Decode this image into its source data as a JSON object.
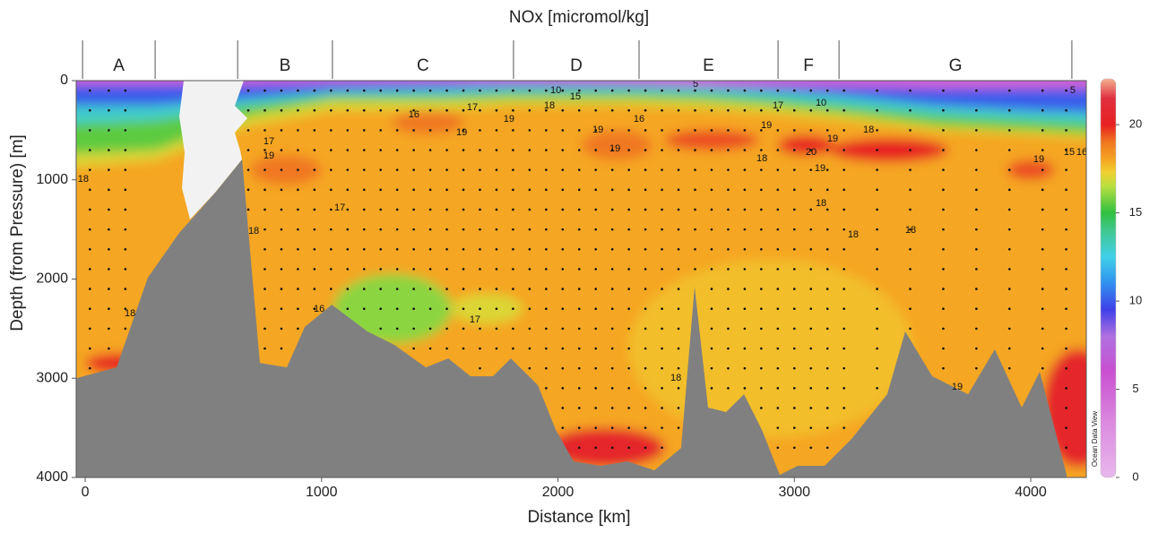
{
  "chart_data": {
    "type": "section",
    "title": "NOx [micromol/kg]",
    "xlabel": "Distance [km]",
    "ylabel": "Depth (from Pressure) [m]",
    "credit": "Ocean Data View",
    "xlim": [
      -38,
      4235
    ],
    "xticks": [
      0,
      1000,
      2000,
      3000,
      4000
    ],
    "ylim": [
      0,
      4000
    ],
    "yticks": [
      0,
      1000,
      2000,
      3000,
      4000
    ],
    "y_inverted": true,
    "sections": [
      {
        "label": "A",
        "from": -11,
        "to": 296
      },
      {
        "label": "B",
        "from": 645,
        "to": 1046
      },
      {
        "label": "C",
        "from": 1046,
        "to": 1812
      },
      {
        "label": "D",
        "from": 1812,
        "to": 2343
      },
      {
        "label": "E",
        "from": 2343,
        "to": 2931
      },
      {
        "label": "F",
        "from": 2931,
        "to": 3189
      },
      {
        "label": "G",
        "from": 3189,
        "to": 4174
      }
    ],
    "colorbar": {
      "clim": [
        0,
        22.6
      ],
      "ticks": [
        0,
        5,
        10,
        15,
        20
      ],
      "colorscale": [
        [
          0,
          "#e8b8ec"
        ],
        [
          3,
          "#dc8ce0"
        ],
        [
          6,
          "#c850d0"
        ],
        [
          8,
          "#b070e0"
        ],
        [
          9.5,
          "#4040e8"
        ],
        [
          11,
          "#3090f0"
        ],
        [
          12.5,
          "#40d0e8"
        ],
        [
          14,
          "#40c890"
        ],
        [
          15,
          "#30c040"
        ],
        [
          16.5,
          "#b8e040"
        ],
        [
          17.3,
          "#f0d030"
        ],
        [
          18,
          "#f5a623"
        ],
        [
          19,
          "#f07820"
        ],
        [
          20,
          "#e82020"
        ],
        [
          21.5,
          "#e03040"
        ],
        [
          22.6,
          "#f4b090"
        ]
      ]
    },
    "base_value": 18,
    "layers": {
      "x": [
        -38,
        300,
        700,
        1050,
        1500,
        1800,
        2300,
        2600,
        2900,
        3200,
        3600,
        4000,
        4235
      ],
      "bands": [
        {
          "value": 17,
          "bottom": [
            900,
            800,
            450,
            300,
            300,
            250,
            250,
            280,
            330,
            400,
            500,
            550,
            600
          ]
        },
        {
          "value": 15.5,
          "bottom": [
            750,
            700,
            350,
            200,
            200,
            180,
            180,
            200,
            250,
            330,
            450,
            500,
            550
          ]
        },
        {
          "value": 13,
          "bottom": [
            450,
            400,
            250,
            150,
            150,
            120,
            120,
            140,
            180,
            250,
            350,
            400,
            450
          ]
        },
        {
          "value": 10,
          "bottom": [
            250,
            250,
            180,
            100,
            80,
            60,
            60,
            70,
            100,
            150,
            250,
            300,
            330
          ]
        },
        {
          "value": 5,
          "bottom": [
            40,
            40,
            40,
            20,
            15,
            20,
            30,
            50,
            50,
            60,
            80,
            80,
            80
          ]
        }
      ]
    },
    "patches": [
      {
        "value": 17.6,
        "x": 2900,
        "depth": 2700,
        "rx": 600,
        "ry": 900
      },
      {
        "value": 16,
        "x": 1300,
        "depth": 2300,
        "rx": 250,
        "ry": 350
      },
      {
        "value": 17,
        "x": 1700,
        "depth": 2300,
        "rx": 150,
        "ry": 150
      },
      {
        "value": 19,
        "x": 850,
        "depth": 900,
        "rx": 150,
        "ry": 150
      },
      {
        "value": 20,
        "x": 3400,
        "depth": 700,
        "rx": 250,
        "ry": 120
      },
      {
        "value": 20,
        "x": 3050,
        "depth": 650,
        "rx": 120,
        "ry": 100
      },
      {
        "value": 19.5,
        "x": 2650,
        "depth": 600,
        "rx": 200,
        "ry": 100
      },
      {
        "value": 19,
        "x": 2250,
        "depth": 650,
        "rx": 150,
        "ry": 150
      },
      {
        "value": 19,
        "x": 1450,
        "depth": 420,
        "rx": 150,
        "ry": 120
      },
      {
        "value": 19.5,
        "x": 4000,
        "depth": 900,
        "rx": 100,
        "ry": 100
      },
      {
        "value": 20.5,
        "x": 2200,
        "depth": 3700,
        "rx": 250,
        "ry": 200
      },
      {
        "value": 20.5,
        "x": 4200,
        "depth": 3300,
        "rx": 150,
        "ry": 600
      },
      {
        "value": 20,
        "x": 150,
        "depth": 2850,
        "rx": 150,
        "ry": 100
      }
    ],
    "contour_labels": [
      {
        "label": 16,
        "x": 1391,
        "depth": 343
      },
      {
        "label": 17,
        "x": 1638,
        "depth": 271
      },
      {
        "label": 19,
        "x": 1793,
        "depth": 388
      },
      {
        "label": 18,
        "x": 1964,
        "depth": 253
      },
      {
        "label": 10,
        "x": 1991,
        "depth": 99
      },
      {
        "label": 15,
        "x": 2074,
        "depth": 163
      },
      {
        "label": 5,
        "x": 2582,
        "depth": 36
      },
      {
        "label": 16,
        "x": 2343,
        "depth": 388
      },
      {
        "label": 19,
        "x": 1593,
        "depth": 524
      },
      {
        "label": 19,
        "x": 2169,
        "depth": 497
      },
      {
        "label": 19,
        "x": 2241,
        "depth": 686
      },
      {
        "label": 19,
        "x": 2882,
        "depth": 451
      },
      {
        "label": 17,
        "x": 2931,
        "depth": 253
      },
      {
        "label": 10,
        "x": 3113,
        "depth": 226
      },
      {
        "label": 18,
        "x": 3314,
        "depth": 497
      },
      {
        "label": 19,
        "x": 3162,
        "depth": 587
      },
      {
        "label": 20,
        "x": 3071,
        "depth": 722
      },
      {
        "label": 19,
        "x": 3109,
        "depth": 885
      },
      {
        "label": 18,
        "x": 2863,
        "depth": 786
      },
      {
        "label": 5,
        "x": 4178,
        "depth": 99
      },
      {
        "label": 15,
        "x": 4163,
        "depth": 722
      },
      {
        "label": 16,
        "x": 4216,
        "depth": 722
      },
      {
        "label": 19,
        "x": 4034,
        "depth": 795
      },
      {
        "label": 17,
        "x": 777,
        "depth": 614
      },
      {
        "label": 19,
        "x": 777,
        "depth": 758
      },
      {
        "label": 18,
        "x": -8,
        "depth": 993
      },
      {
        "label": 17,
        "x": 1077,
        "depth": 1282
      },
      {
        "label": 18,
        "x": 713,
        "depth": 1517
      },
      {
        "label": 18,
        "x": 3113,
        "depth": 1237
      },
      {
        "label": 18,
        "x": 3249,
        "depth": 1553
      },
      {
        "label": 18,
        "x": 3492,
        "depth": 1508
      },
      {
        "label": 16,
        "x": 990,
        "depth": 2303
      },
      {
        "label": 17,
        "x": 1649,
        "depth": 2411
      },
      {
        "label": 18,
        "x": 190,
        "depth": 2348
      },
      {
        "label": 18,
        "x": 2499,
        "depth": 2998
      },
      {
        "label": 19,
        "x": 3689,
        "depth": 3088
      }
    ],
    "stations": [
      20,
      100,
      170,
      690,
      760,
      830,
      900,
      970,
      1040,
      1110,
      1180,
      1250,
      1320,
      1390,
      1460,
      1530,
      1600,
      1670,
      1740,
      1810,
      1880,
      1950,
      2020,
      2090,
      2160,
      2230,
      2300,
      2370,
      2440,
      2510,
      2580,
      2650,
      2720,
      2790,
      2860,
      2930,
      3000,
      3070,
      3140,
      3210,
      3350,
      3490,
      3630,
      3770,
      3910,
      4050,
      4150
    ],
    "sample_depths": [
      100,
      300,
      500,
      700,
      900,
      1100,
      1300,
      1500,
      1700,
      1900,
      2100,
      2300,
      2500,
      2700,
      2900,
      3100,
      3300,
      3500,
      3700,
      3900
    ],
    "bathymetry": {
      "color": "#808080",
      "x": [
        -38,
        133,
        265,
        398,
        550,
        664,
        739,
        853,
        929,
        1043,
        1194,
        1308,
        1441,
        1536,
        1630,
        1725,
        1801,
        1915,
        1991,
        2066,
        2180,
        2294,
        2408,
        2521,
        2578,
        2635,
        2711,
        2787,
        2863,
        2938,
        3014,
        3128,
        3242,
        3393,
        3469,
        3583,
        3735,
        3848,
        3962,
        4038,
        4152
      ],
      "depth": [
        3000,
        2890,
        1987,
        1535,
        1129,
        795,
        2845,
        2890,
        2483,
        2258,
        2528,
        2664,
        2890,
        2800,
        2980,
        2980,
        2800,
        3070,
        3522,
        3838,
        3883,
        3838,
        3928,
        3703,
        2077,
        3296,
        3341,
        3161,
        3522,
        3974,
        3883,
        3883,
        3612,
        3161,
        2528,
        2980,
        3161,
        2709,
        3296,
        2935,
        3974
      ]
    }
  }
}
